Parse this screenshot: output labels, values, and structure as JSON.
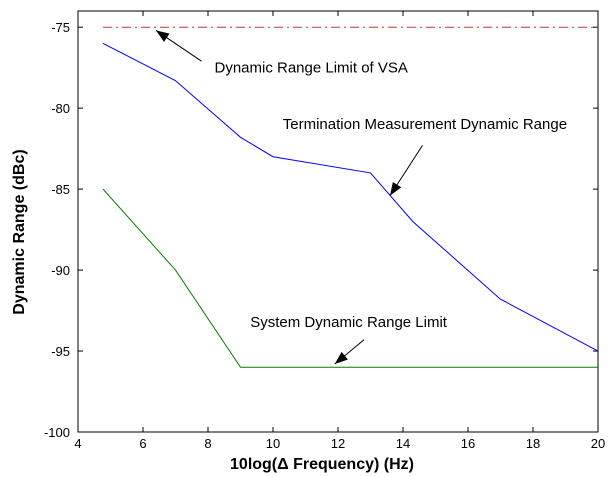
{
  "chart_data": {
    "type": "line",
    "title": "",
    "xlabel": "10log(Δ Frequency) (Hz)",
    "ylabel": "Dynamic Range (dBc)",
    "xlim": [
      4,
      20
    ],
    "ylim": [
      -100,
      -74
    ],
    "xticks": [
      4,
      6,
      8,
      10,
      12,
      14,
      16,
      18,
      20
    ],
    "yticks": [
      -75,
      -80,
      -85,
      -90,
      -95,
      -100
    ],
    "grid": false,
    "series": [
      {
        "name": "Dynamic Range Limit of VSA",
        "style": "dash-dot",
        "color": "#c0392b",
        "x": [
          4.77,
          20
        ],
        "y": [
          -75,
          -75
        ]
      },
      {
        "name": "Termination Measurement Dynamic Range",
        "style": "solid",
        "color": "#0000ff",
        "x": [
          4.77,
          7,
          9,
          10,
          13,
          14.3,
          17,
          20
        ],
        "y": [
          -76,
          -78.3,
          -81.8,
          -83,
          -84,
          -87,
          -91.8,
          -95
        ]
      },
      {
        "name": "System Dynamic Range Limit",
        "style": "solid",
        "color": "#008000",
        "x": [
          4.77,
          7,
          9,
          20
        ],
        "y": [
          -85,
          -90,
          -96,
          -96
        ]
      }
    ],
    "annotations": [
      {
        "text": "Dynamic Range Limit of VSA",
        "text_x": 8.2,
        "text_y": -77.8,
        "arrow_from": [
          7.8,
          -77.1
        ],
        "arrow_to": [
          6.4,
          -75.2
        ]
      },
      {
        "text": "Termination Measurement Dynamic Range",
        "text_x": 10.3,
        "text_y": -81.3,
        "arrow_from": [
          14.6,
          -82.3
        ],
        "arrow_to": [
          13.6,
          -85.4
        ]
      },
      {
        "text": "System Dynamic Range Limit",
        "text_x": 9.3,
        "text_y": -93.5,
        "arrow_from": [
          12.8,
          -94.3
        ],
        "arrow_to": [
          11.9,
          -95.8
        ]
      }
    ]
  }
}
